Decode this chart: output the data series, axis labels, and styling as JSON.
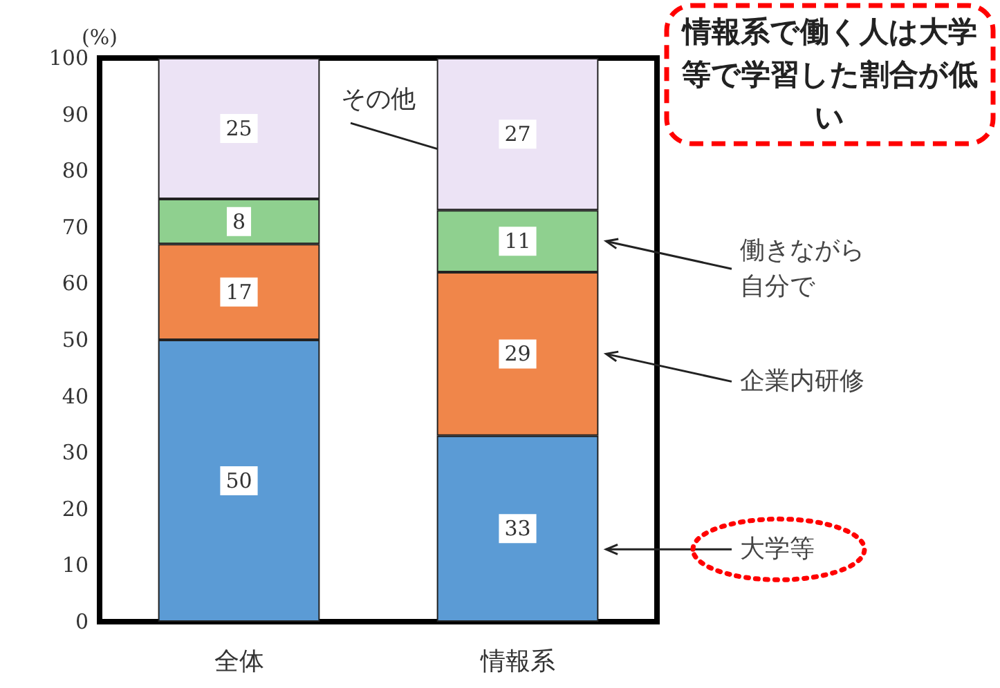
{
  "chart_data": {
    "type": "bar",
    "stacked": true,
    "ylabel": "(%)",
    "categories": [
      "全体",
      "情報系"
    ],
    "series": [
      {
        "name": "大学等",
        "color": "#5b9bd5",
        "values": [
          50,
          33
        ]
      },
      {
        "name": "企業内研修",
        "color": "#f0864a",
        "values": [
          17,
          29
        ]
      },
      {
        "name": "働きながら自分で",
        "color": "#8fd08f",
        "values": [
          8,
          11
        ]
      },
      {
        "name": "その他",
        "color": "#ece3f5",
        "values": [
          25,
          27
        ]
      }
    ],
    "ylim": [
      0,
      100
    ],
    "yticks": [
      0,
      10,
      20,
      30,
      40,
      50,
      60,
      70,
      80,
      90,
      100
    ],
    "data_labels": true,
    "grid": false,
    "legend": false,
    "annotations": [
      "情報系で働く人は大学等で学習した割合が低い"
    ]
  }
}
